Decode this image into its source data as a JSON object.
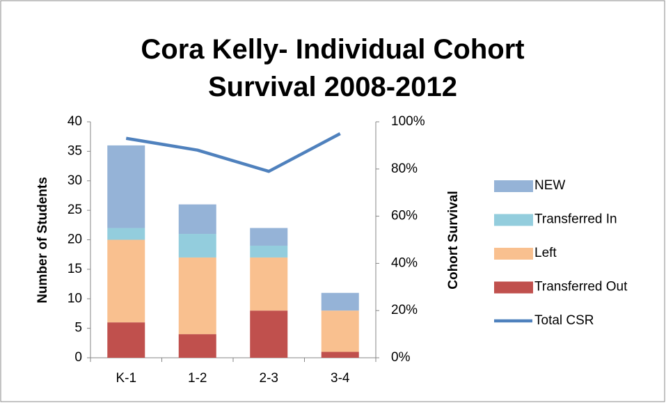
{
  "chart_data": {
    "type": "stacked-bar-line",
    "title": "Cora Kelly- Individual Cohort Survival 2008-2012",
    "y_label": "Number of Students",
    "y2_label": "Cohort Survival",
    "categories": [
      "K-1",
      "1-2",
      "2-3",
      "3-4"
    ],
    "series": [
      {
        "name": "Transferred Out",
        "color": "#c0504d",
        "values": [
          6,
          4,
          8,
          1
        ]
      },
      {
        "name": "Left",
        "color": "#f9c08f",
        "values": [
          14,
          13,
          9,
          7
        ]
      },
      {
        "name": "Transferred In",
        "color": "#93cddd",
        "values": [
          2,
          4,
          2,
          0
        ]
      },
      {
        "name": "NEW",
        "color": "#95b3d7",
        "values": [
          14,
          5,
          3,
          3
        ]
      },
      {
        "name": "Total CSR",
        "color": "#4f81bd",
        "type": "line",
        "axis": "y2",
        "values": [
          93,
          88,
          79,
          95
        ]
      }
    ],
    "ylim": [
      0,
      40
    ],
    "yticks": [
      0,
      5,
      10,
      15,
      20,
      25,
      30,
      35,
      40
    ],
    "y2lim": [
      0,
      100
    ],
    "y2ticks": [
      {
        "value": 0,
        "label": "0%"
      },
      {
        "value": 20,
        "label": "20%"
      },
      {
        "value": 40,
        "label": "40%"
      },
      {
        "value": 60,
        "label": "60%"
      },
      {
        "value": 80,
        "label": "80%"
      },
      {
        "value": 100,
        "label": "100%"
      }
    ],
    "grid": false,
    "legend": "right"
  }
}
